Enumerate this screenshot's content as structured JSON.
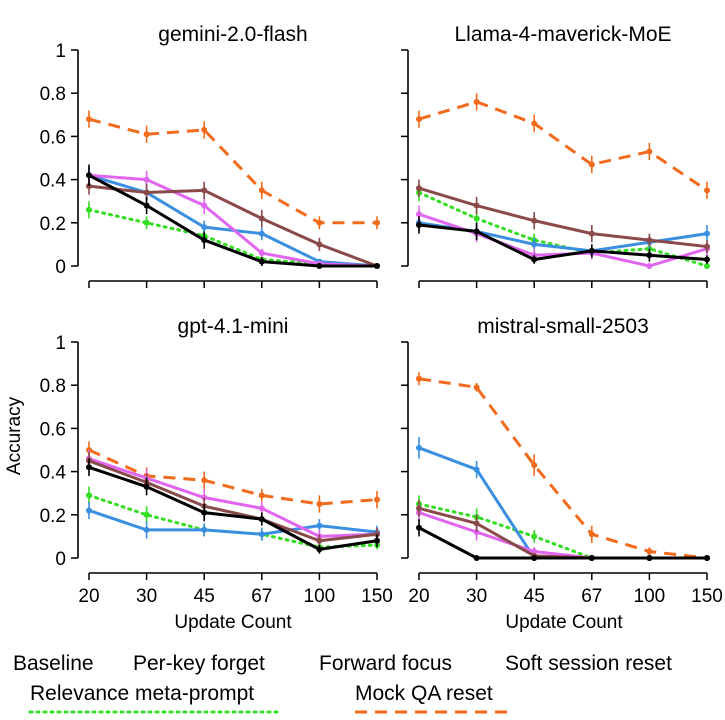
{
  "chart_data": {
    "type": "line",
    "ylabel": "Accuracy",
    "xlabel": "Update Count",
    "x_categories": [
      "20",
      "30",
      "45",
      "67",
      "100",
      "150"
    ],
    "y_ticks": [
      "0",
      "0.2",
      "0.4",
      "0.6",
      "0.8",
      "1"
    ],
    "ylim": [
      0,
      1
    ],
    "series_meta": [
      {
        "name": "Baseline",
        "color": "#000000",
        "dash": "solid"
      },
      {
        "name": "Per-key forget",
        "color": "#3b8fe0",
        "dash": "solid"
      },
      {
        "name": "Forward focus",
        "color": "#e066f0",
        "dash": "solid"
      },
      {
        "name": "Soft session reset",
        "color": "#8b4a4a",
        "dash": "solid"
      },
      {
        "name": "Relevance meta-prompt",
        "color": "#33dd22",
        "dash": "dotted"
      },
      {
        "name": "Mock QA reset",
        "color": "#f26a1b",
        "dash": "dashed"
      }
    ],
    "panels": [
      {
        "title": "gemini-2.0-flash",
        "series": [
          {
            "name": "Baseline",
            "values": [
              0.42,
              0.28,
              0.12,
              0.02,
              0.0,
              0.0
            ],
            "err": [
              0.05,
              0.04,
              0.04,
              0.02,
              0.01,
              0.0
            ]
          },
          {
            "name": "Per-key forget",
            "values": [
              0.42,
              0.34,
              0.18,
              0.15,
              0.02,
              0.0
            ],
            "err": [
              0.04,
              0.04,
              0.03,
              0.03,
              0.01,
              0.0
            ]
          },
          {
            "name": "Forward focus",
            "values": [
              0.42,
              0.4,
              0.28,
              0.06,
              0.01,
              0.0
            ],
            "err": [
              0.04,
              0.04,
              0.04,
              0.02,
              0.01,
              0.0
            ]
          },
          {
            "name": "Soft session reset",
            "values": [
              0.37,
              0.34,
              0.35,
              0.22,
              0.1,
              0.0
            ],
            "err": [
              0.04,
              0.04,
              0.04,
              0.04,
              0.03,
              0.0
            ]
          },
          {
            "name": "Relevance meta-prompt",
            "values": [
              0.26,
              0.2,
              0.14,
              0.03,
              0.01,
              0.0
            ],
            "err": [
              0.04,
              0.03,
              0.03,
              0.02,
              0.01,
              0.0
            ]
          },
          {
            "name": "Mock QA reset",
            "values": [
              0.68,
              0.61,
              0.63,
              0.35,
              0.2,
              0.2
            ],
            "err": [
              0.04,
              0.04,
              0.04,
              0.04,
              0.03,
              0.03
            ]
          }
        ]
      },
      {
        "title": "Llama-4-maverick-MoE",
        "series": [
          {
            "name": "Baseline",
            "values": [
              0.19,
              0.16,
              0.03,
              0.07,
              0.05,
              0.03
            ],
            "err": [
              0.04,
              0.04,
              0.02,
              0.03,
              0.03,
              0.02
            ]
          },
          {
            "name": "Per-key forget",
            "values": [
              0.2,
              0.16,
              0.1,
              0.07,
              0.11,
              0.15
            ],
            "err": [
              0.04,
              0.04,
              0.03,
              0.03,
              0.03,
              0.04
            ]
          },
          {
            "name": "Forward focus",
            "values": [
              0.24,
              0.15,
              0.05,
              0.06,
              0.0,
              0.08
            ],
            "err": [
              0.04,
              0.04,
              0.03,
              0.03,
              0.01,
              0.03
            ]
          },
          {
            "name": "Soft session reset",
            "values": [
              0.36,
              0.28,
              0.21,
              0.15,
              0.12,
              0.09
            ],
            "err": [
              0.04,
              0.04,
              0.04,
              0.04,
              0.03,
              0.03
            ]
          },
          {
            "name": "Relevance meta-prompt",
            "values": [
              0.34,
              0.22,
              0.12,
              0.06,
              0.08,
              0.0
            ],
            "err": [
              0.04,
              0.04,
              0.03,
              0.03,
              0.03,
              0.01
            ]
          },
          {
            "name": "Mock QA reset",
            "values": [
              0.68,
              0.76,
              0.66,
              0.47,
              0.53,
              0.35
            ],
            "err": [
              0.04,
              0.04,
              0.04,
              0.04,
              0.04,
              0.04
            ]
          }
        ]
      },
      {
        "title": "gpt-4.1-mini",
        "series": [
          {
            "name": "Baseline",
            "values": [
              0.42,
              0.33,
              0.21,
              0.18,
              0.04,
              0.08
            ],
            "err": [
              0.04,
              0.04,
              0.04,
              0.03,
              0.02,
              0.03
            ]
          },
          {
            "name": "Per-key forget",
            "values": [
              0.22,
              0.13,
              0.13,
              0.11,
              0.15,
              0.12
            ],
            "err": [
              0.04,
              0.04,
              0.03,
              0.03,
              0.03,
              0.03
            ]
          },
          {
            "name": "Forward focus",
            "values": [
              0.46,
              0.37,
              0.28,
              0.23,
              0.1,
              0.11
            ],
            "err": [
              0.04,
              0.04,
              0.04,
              0.03,
              0.03,
              0.03
            ]
          },
          {
            "name": "Soft session reset",
            "values": [
              0.45,
              0.35,
              0.24,
              0.18,
              0.08,
              0.11
            ],
            "err": [
              0.04,
              0.04,
              0.04,
              0.03,
              0.03,
              0.03
            ]
          },
          {
            "name": "Relevance meta-prompt",
            "values": [
              0.29,
              0.2,
              0.13,
              0.11,
              0.05,
              0.06
            ],
            "err": [
              0.04,
              0.04,
              0.03,
              0.03,
              0.02,
              0.02
            ]
          },
          {
            "name": "Mock QA reset",
            "values": [
              0.5,
              0.38,
              0.36,
              0.29,
              0.25,
              0.27
            ],
            "err": [
              0.04,
              0.04,
              0.04,
              0.03,
              0.04,
              0.04
            ]
          }
        ]
      },
      {
        "title": "mistral-small-2503",
        "series": [
          {
            "name": "Baseline",
            "values": [
              0.14,
              0.0,
              0.0,
              0.0,
              0.0,
              0.0
            ],
            "err": [
              0.04,
              0.01,
              0.0,
              0.0,
              0.0,
              0.0
            ]
          },
          {
            "name": "Per-key forget",
            "values": [
              0.51,
              0.41,
              0.0,
              0.0,
              0.0,
              0.0
            ],
            "err": [
              0.05,
              0.04,
              0.01,
              0.0,
              0.0,
              0.0
            ]
          },
          {
            "name": "Forward focus",
            "values": [
              0.21,
              0.12,
              0.03,
              0.0,
              0.0,
              0.0
            ],
            "err": [
              0.04,
              0.04,
              0.02,
              0.0,
              0.0,
              0.0
            ]
          },
          {
            "name": "Soft session reset",
            "values": [
              0.23,
              0.16,
              0.01,
              0.0,
              0.0,
              0.0
            ],
            "err": [
              0.04,
              0.04,
              0.01,
              0.0,
              0.0,
              0.0
            ]
          },
          {
            "name": "Relevance meta-prompt",
            "values": [
              0.25,
              0.19,
              0.1,
              0.0,
              0.0,
              0.0
            ],
            "err": [
              0.04,
              0.04,
              0.03,
              0.0,
              0.0,
              0.0
            ]
          },
          {
            "name": "Mock QA reset",
            "values": [
              0.83,
              0.79,
              0.43,
              0.11,
              0.03,
              0.0
            ],
            "err": [
              0.03,
              0.02,
              0.05,
              0.04,
              0.02,
              0.0
            ]
          }
        ]
      }
    ]
  }
}
